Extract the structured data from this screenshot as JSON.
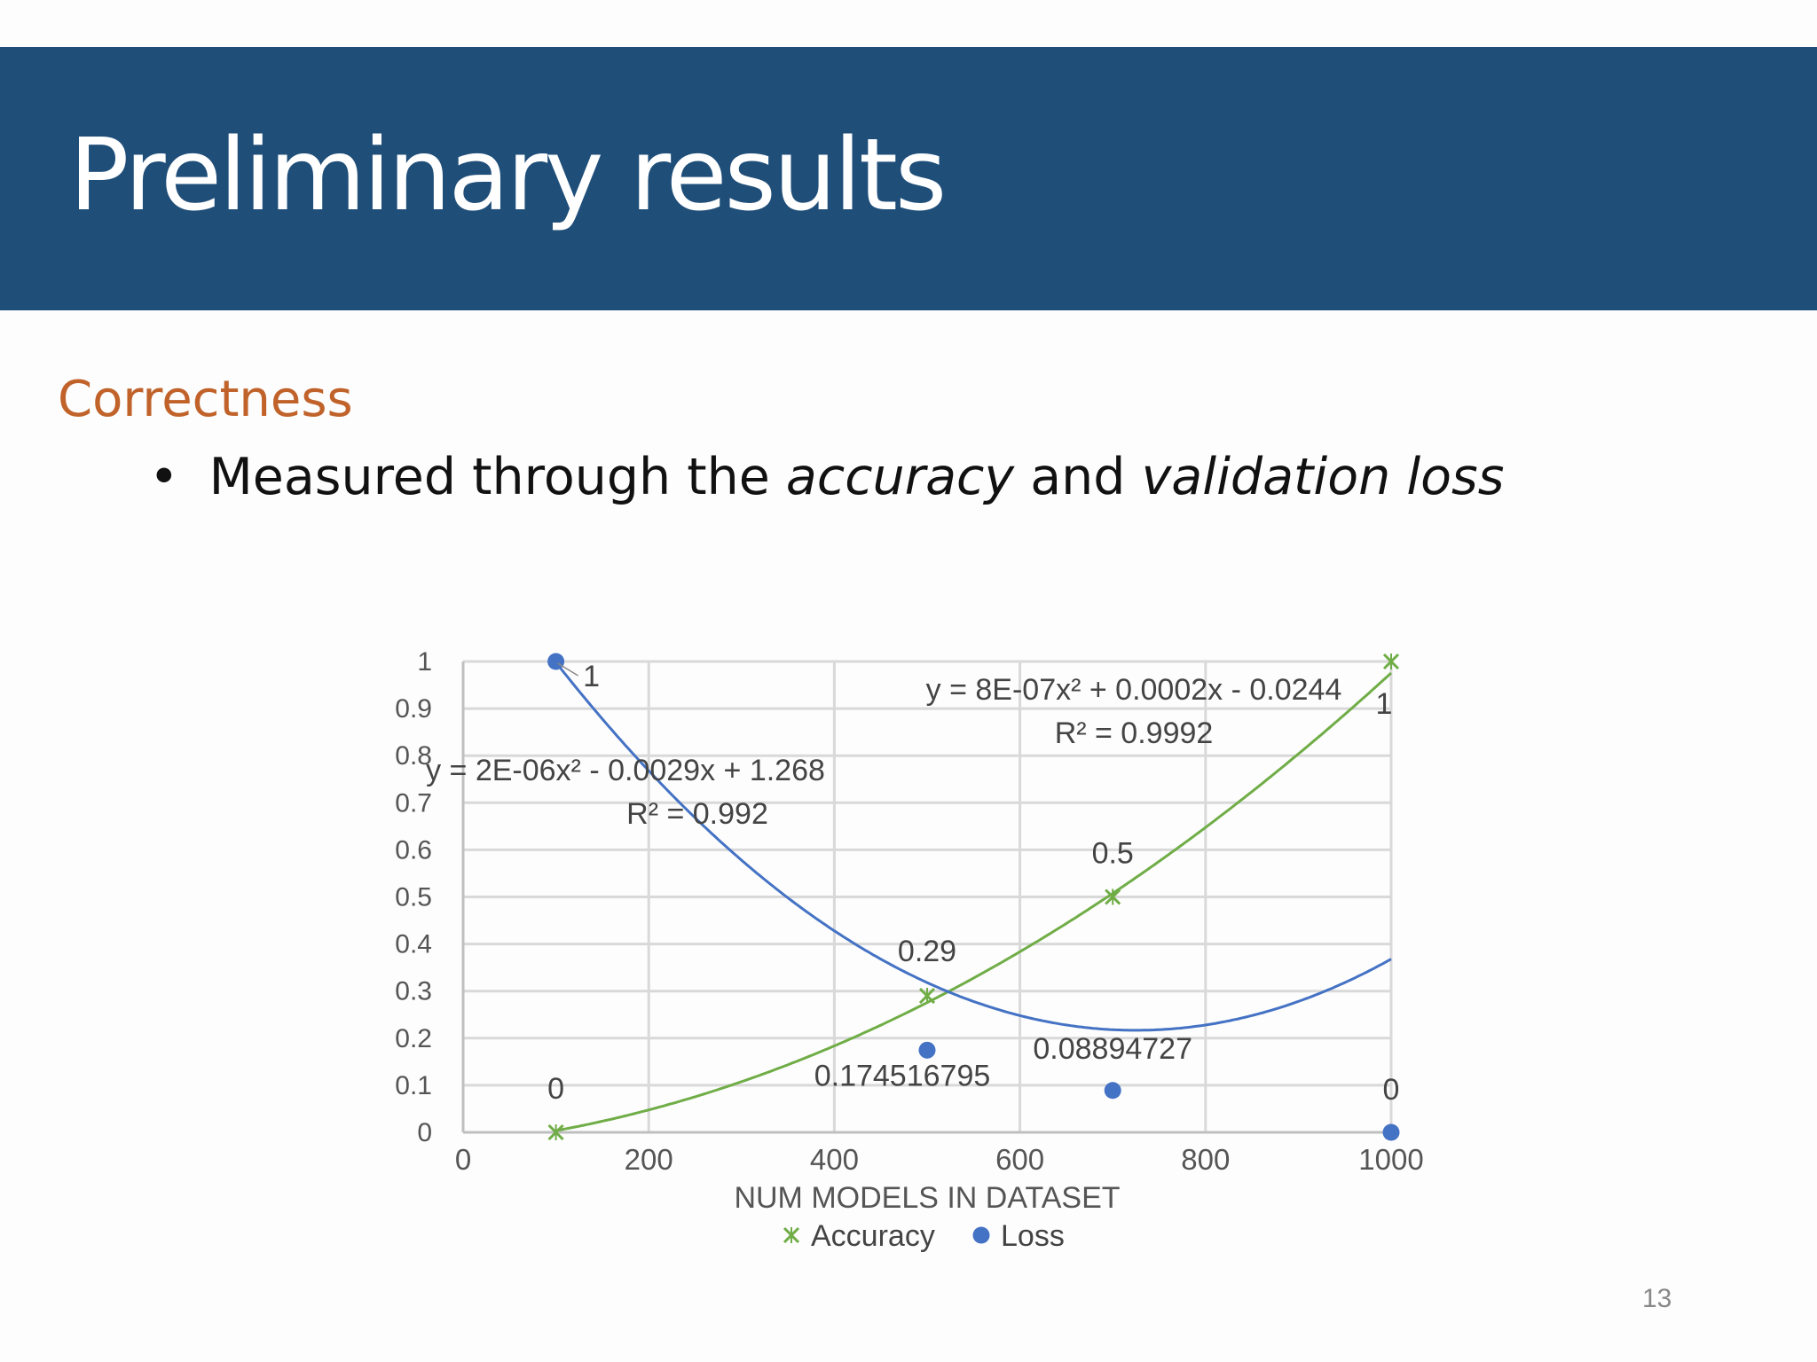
{
  "slide": {
    "title": "Preliminary results",
    "section_heading": "Correctness",
    "bullet": {
      "prefix": "Measured through the ",
      "term1": "accuracy",
      "middle": " and ",
      "term2": "validation loss"
    },
    "page_number": "13"
  },
  "colors": {
    "title_bar": "#1f4e79",
    "heading": "#c0622a",
    "accuracy": "#70ad47",
    "loss": "#4472c4"
  },
  "chart_data": {
    "type": "scatter",
    "title": "",
    "xlabel": "NUM MODELS IN DATASET",
    "ylabel": "",
    "xlim": [
      0,
      1000
    ],
    "ylim": [
      0,
      1
    ],
    "x_ticks": [
      "0",
      "200",
      "400",
      "600",
      "800",
      "1000"
    ],
    "y_ticks": [
      "0",
      "0.1",
      "0.2",
      "0.3",
      "0.4",
      "0.5",
      "0.6",
      "0.7",
      "0.8",
      "0.9",
      "1"
    ],
    "grid": true,
    "legend": "bottom",
    "series": [
      {
        "name": "Accuracy",
        "marker": "x",
        "x": [
          100,
          500,
          700,
          1000
        ],
        "y": [
          0,
          0.29,
          0.5,
          1
        ],
        "labels": [
          "0",
          "0.29",
          "0.5",
          "1"
        ],
        "trendline": {
          "type": "polynomial-2",
          "coef": [
            8e-07,
            0.0002,
            -0.0244
          ],
          "equation": "y = 8E-07x² + 0.0002x - 0.0244",
          "r2": "R² = 0.9992"
        }
      },
      {
        "name": "Loss",
        "marker": "circle",
        "x": [
          100,
          500,
          700,
          1000
        ],
        "y": [
          1,
          0.174516795,
          0.08894727,
          0
        ],
        "labels": [
          "1",
          "0.174516795",
          "0.08894727",
          "0"
        ],
        "trendline": {
          "type": "polynomial-2",
          "coef": [
            2e-06,
            -0.0029,
            1.268
          ],
          "equation": "y = 2E-06x² - 0.0029x + 1.268",
          "r2": "R² = 0.992"
        }
      }
    ]
  }
}
